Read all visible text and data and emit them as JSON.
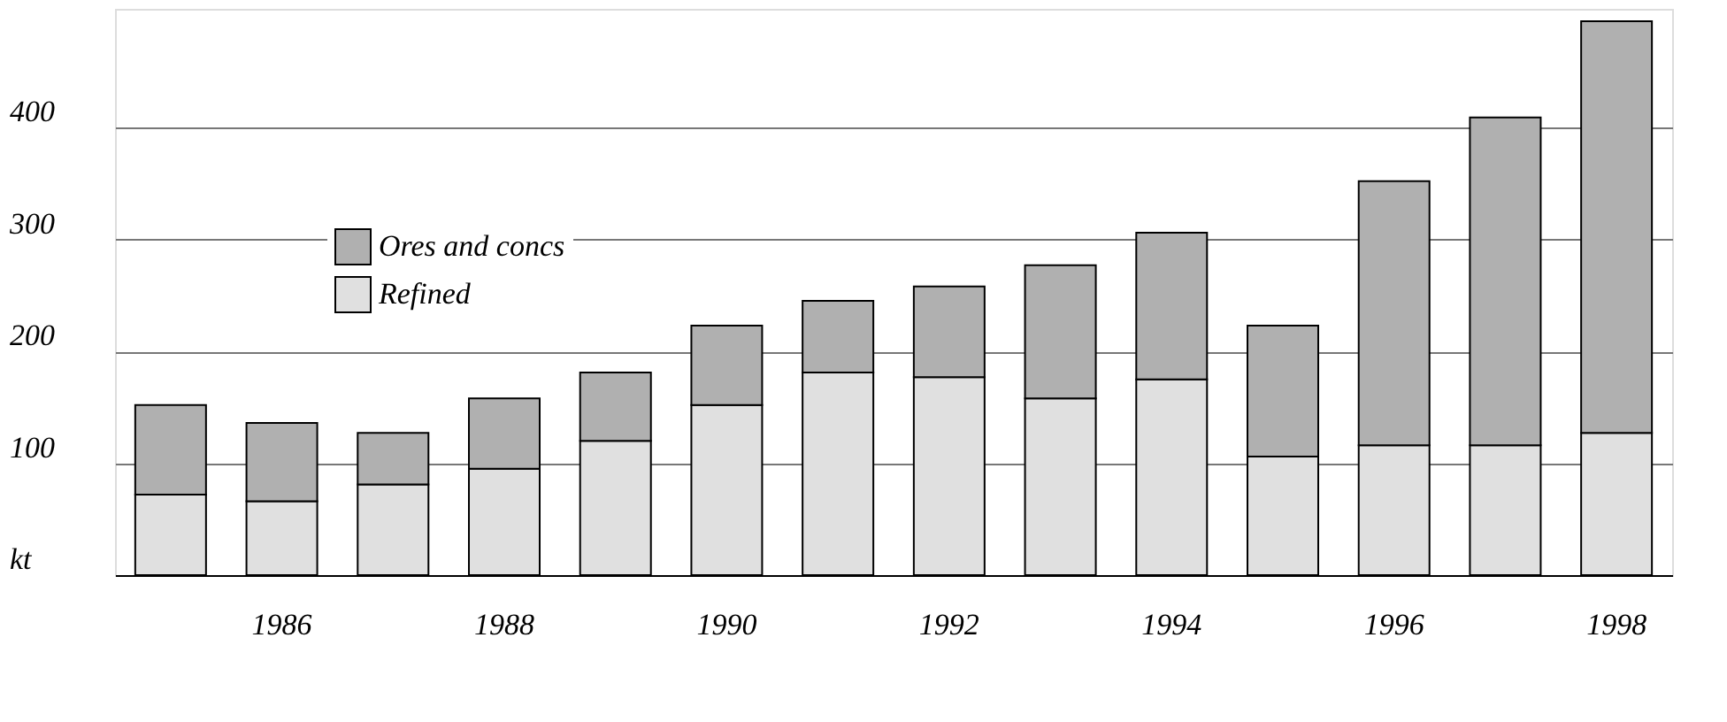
{
  "chart_data": {
    "type": "bar",
    "stacked": true,
    "categories": [
      null,
      "1986",
      null,
      "1988",
      null,
      "1990",
      null,
      "1992",
      null,
      "1994",
      null,
      "1996",
      null,
      "1998"
    ],
    "series": [
      {
        "name": "Refined",
        "color": "#e0e0e0",
        "values": [
          72,
          66,
          81,
          95,
          120,
          152,
          181,
          177,
          158,
          175,
          106,
          116,
          116,
          127
        ]
      },
      {
        "name": "Ores and concs",
        "color": "#b0b0b0",
        "values": [
          80,
          70,
          46,
          63,
          61,
          71,
          64,
          81,
          119,
          131,
          117,
          236,
          293,
          368
        ]
      }
    ],
    "ylim": [
      0,
      506
    ],
    "yticks": [
      {
        "value": 0,
        "label": "kt"
      },
      100,
      200,
      300,
      400
    ],
    "grid": "y",
    "legend": "top left"
  }
}
